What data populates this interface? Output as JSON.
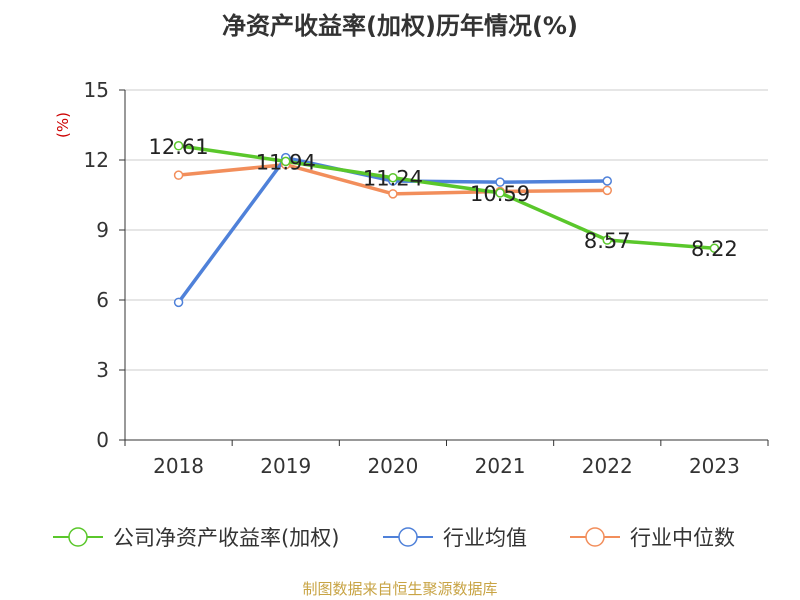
{
  "title": "净资产收益率(加权)历年情况(%)",
  "source": "制图数据来自恒生聚源数据库",
  "chart_data": {
    "type": "line",
    "unit_label": "(%)",
    "categories": [
      "2018",
      "2019",
      "2020",
      "2021",
      "2022",
      "2023"
    ],
    "ylim": [
      0,
      15
    ],
    "yticks": [
      0,
      3,
      6,
      9,
      12,
      15
    ],
    "grid": true,
    "legend_position": "bottom",
    "series": [
      {
        "name": "公司净资产收益率(加权)",
        "color": "#5ac72b",
        "values": [
          12.61,
          11.94,
          11.24,
          10.59,
          8.57,
          8.22
        ],
        "labels": [
          "12.61",
          "11.94",
          "11.24",
          "10.59",
          "8.57",
          "8.22"
        ]
      },
      {
        "name": "行业均值",
        "color": "#4f81d9",
        "values": [
          5.9,
          12.1,
          11.1,
          11.05,
          11.1,
          null
        ]
      },
      {
        "name": "行业中位数",
        "color": "#f28e5b",
        "values": [
          11.35,
          11.8,
          10.55,
          10.65,
          10.7,
          null
        ]
      }
    ]
  }
}
